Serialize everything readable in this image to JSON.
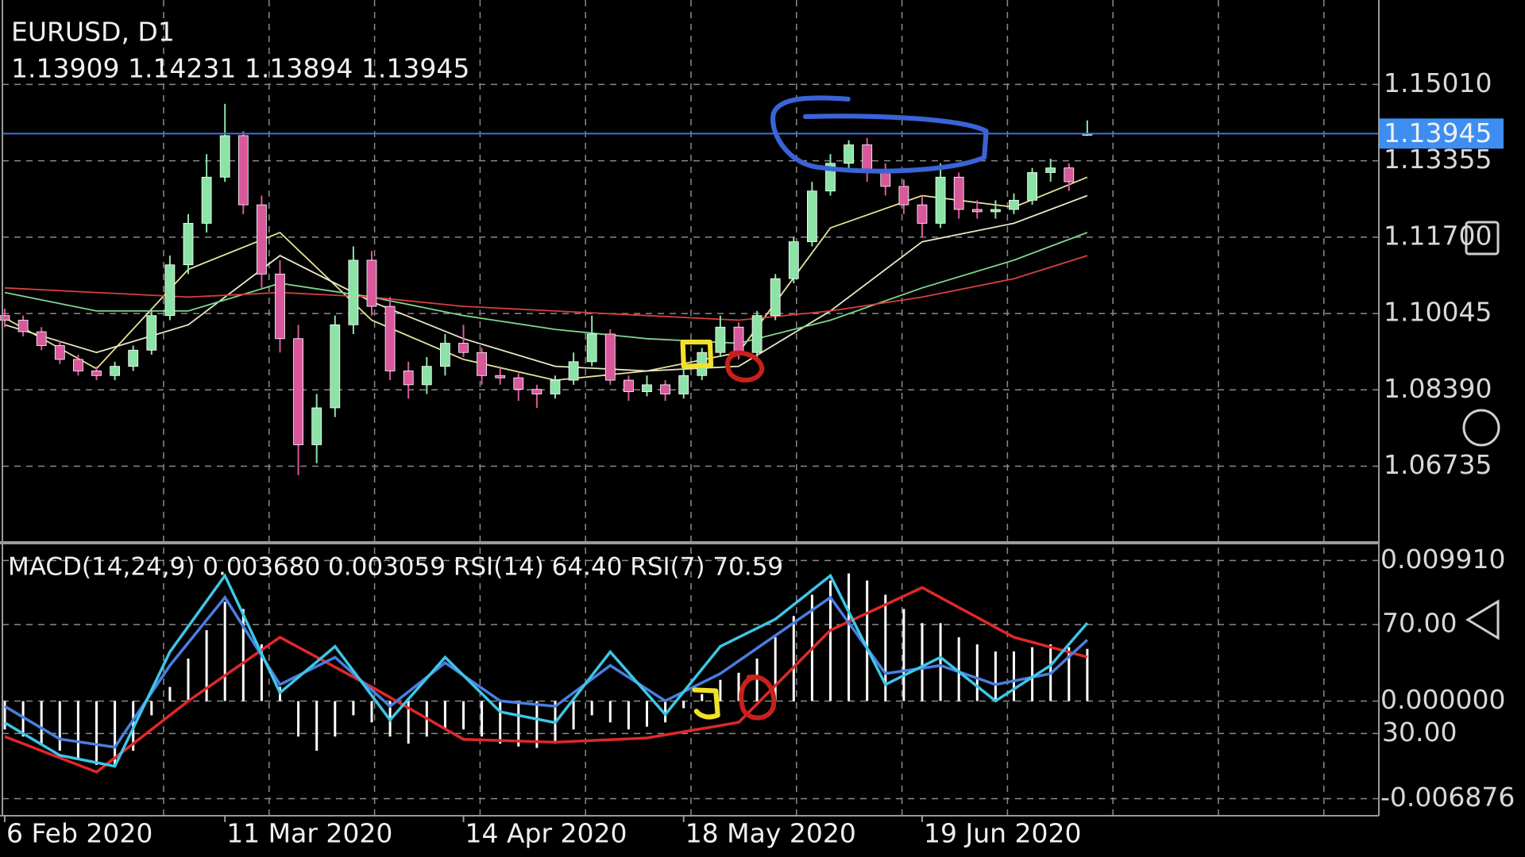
{
  "chart_data": {
    "type": "candlestick",
    "title": "EURUSD, D1",
    "subtitle": "1.13909 1.14231 1.13894 1.13945",
    "candles": [
      [
        1.1,
        1.1015,
        1.0975,
        1.099
      ],
      [
        1.099,
        1.1,
        1.0955,
        1.0965
      ],
      [
        1.0965,
        1.0975,
        1.0925,
        1.0935
      ],
      [
        1.0935,
        1.0945,
        1.0895,
        1.0905
      ],
      [
        1.0905,
        1.0915,
        1.087,
        1.088
      ],
      [
        1.088,
        1.089,
        1.086,
        1.087
      ],
      [
        1.087,
        1.09,
        1.086,
        1.089
      ],
      [
        1.089,
        1.0935,
        1.088,
        1.0925
      ],
      [
        1.0925,
        1.101,
        1.0915,
        1.1
      ],
      [
        1.1,
        1.113,
        1.099,
        1.111
      ],
      [
        1.111,
        1.122,
        1.109,
        1.12
      ],
      [
        1.12,
        1.135,
        1.118,
        1.13
      ],
      [
        1.13,
        1.1459,
        1.129,
        1.139
      ],
      [
        1.139,
        1.14,
        1.122,
        1.124
      ],
      [
        1.124,
        1.126,
        1.106,
        1.109
      ],
      [
        1.109,
        1.112,
        1.092,
        1.095
      ],
      [
        1.095,
        1.098,
        1.0654,
        1.072
      ],
      [
        1.072,
        1.083,
        1.068,
        1.08
      ],
      [
        1.08,
        1.1,
        1.078,
        1.098
      ],
      [
        1.098,
        1.115,
        1.096,
        1.112
      ],
      [
        1.112,
        1.114,
        1.1,
        1.102
      ],
      [
        1.102,
        1.104,
        1.086,
        1.088
      ],
      [
        1.088,
        1.09,
        1.082,
        1.085
      ],
      [
        1.085,
        1.091,
        1.083,
        1.089
      ],
      [
        1.089,
        1.096,
        1.087,
        1.094
      ],
      [
        1.094,
        1.098,
        1.091,
        1.092
      ],
      [
        1.092,
        1.093,
        1.085,
        1.087
      ],
      [
        1.087,
        1.089,
        1.085,
        1.0865
      ],
      [
        1.0865,
        1.0875,
        1.0815,
        1.084
      ],
      [
        1.084,
        1.085,
        1.08,
        1.083
      ],
      [
        1.083,
        1.087,
        1.082,
        1.086
      ],
      [
        1.086,
        1.092,
        1.085,
        1.09
      ],
      [
        1.09,
        1.1,
        1.089,
        1.096
      ],
      [
        1.096,
        1.097,
        1.085,
        1.086
      ],
      [
        1.086,
        1.087,
        1.0815,
        1.0835
      ],
      [
        1.0835,
        1.087,
        1.0825,
        1.085
      ],
      [
        1.085,
        1.086,
        1.0815,
        1.083
      ],
      [
        1.083,
        1.089,
        1.082,
        1.087
      ],
      [
        1.087,
        1.093,
        1.086,
        1.092
      ],
      [
        1.092,
        1.1,
        1.091,
        1.0975
      ],
      [
        1.0975,
        1.0985,
        1.0905,
        1.092
      ],
      [
        1.092,
        1.101,
        1.091,
        1.1
      ],
      [
        1.1,
        1.109,
        1.099,
        1.108
      ],
      [
        1.108,
        1.117,
        1.107,
        1.116
      ],
      [
        1.116,
        1.129,
        1.115,
        1.127
      ],
      [
        1.127,
        1.135,
        1.126,
        1.133
      ],
      [
        1.133,
        1.138,
        1.131,
        1.137
      ],
      [
        1.137,
        1.1385,
        1.129,
        1.131
      ],
      [
        1.131,
        1.133,
        1.126,
        1.128
      ],
      [
        1.128,
        1.1295,
        1.122,
        1.124
      ],
      [
        1.124,
        1.126,
        1.117,
        1.12
      ],
      [
        1.12,
        1.133,
        1.119,
        1.13
      ],
      [
        1.13,
        1.131,
        1.121,
        1.123
      ],
      [
        1.123,
        1.125,
        1.121,
        1.1225
      ],
      [
        1.1225,
        1.125,
        1.121,
        1.123
      ],
      [
        1.123,
        1.1265,
        1.122,
        1.125
      ],
      [
        1.125,
        1.132,
        1.124,
        1.131
      ],
      [
        1.131,
        1.134,
        1.129,
        1.132
      ],
      [
        1.132,
        1.133,
        1.127,
        1.129
      ],
      [
        1.13909,
        1.14231,
        1.13894,
        1.13945
      ]
    ],
    "up_color": "#8be3a6",
    "down_color": "#d9589c",
    "ylim": [
      1.0511,
      1.1684
    ],
    "yticks": [
      {
        "value": 1.1501,
        "label": "1.15010"
      },
      1.13355,
      {
        "value": 1.117,
        "label": "1.11700"
      },
      1.10045,
      {
        "value": 1.0839,
        "label": "1.08390"
      },
      1.06735
    ],
    "price_line": 1.13945,
    "xticks": [
      {
        "value": 0,
        "label": "6 Feb 2020"
      },
      {
        "value": 12,
        "label": "11 Mar 2020"
      },
      {
        "value": 25,
        "label": "14 Apr 2020"
      },
      {
        "value": 37,
        "label": "18 May 2020"
      },
      {
        "value": 50,
        "label": "19 Jun 2020"
      }
    ],
    "ma_x": [
      0,
      5,
      10,
      15,
      20,
      25,
      30,
      35,
      40,
      45,
      50,
      55,
      59
    ],
    "moving_averages": [
      {
        "color": "#e6e39a",
        "values": [
          1.0995,
          1.0885,
          1.11,
          1.118,
          1.099,
          1.0905,
          1.086,
          1.088,
          1.092,
          1.119,
          1.126,
          1.1235,
          1.13
        ]
      },
      {
        "color": "#e8e8c8",
        "values": [
          1.098,
          1.092,
          1.098,
          1.113,
          1.103,
          1.095,
          1.089,
          1.088,
          1.089,
          1.101,
          1.116,
          1.12,
          1.126
        ]
      },
      {
        "color": "#7fd58e",
        "values": [
          1.105,
          1.101,
          1.101,
          1.107,
          1.104,
          1.1,
          1.097,
          1.095,
          1.094,
          1.099,
          1.106,
          1.112,
          1.118
        ]
      },
      {
        "color": "#d8403c",
        "values": [
          1.106,
          1.105,
          1.104,
          1.105,
          1.104,
          1.102,
          1.101,
          1.1,
          1.099,
          1.101,
          1.104,
          1.108,
          1.113
        ]
      }
    ],
    "indicator_label": "MACD(14,24,9) 0.003680 0.003059 RSI(14) 64.40 RSI(7) 70.59",
    "macd_histogram": [
      -0.002,
      -0.0025,
      -0.003,
      -0.0035,
      -0.004,
      -0.0045,
      -0.0045,
      -0.0035,
      -0.001,
      0.001,
      0.003,
      0.005,
      0.007,
      0.0065,
      0.004,
      0.001,
      -0.0025,
      -0.0035,
      -0.0025,
      -0.001,
      -0.0015,
      -0.0025,
      -0.003,
      -0.0025,
      -0.002,
      -0.002,
      -0.0025,
      -0.003,
      -0.0032,
      -0.0033,
      -0.003,
      -0.002,
      -0.001,
      -0.0015,
      -0.002,
      -0.0018,
      -0.0015,
      -0.0005,
      0.0005,
      0.0015,
      0.002,
      0.003,
      0.0045,
      0.006,
      0.0075,
      0.0085,
      0.009,
      0.0085,
      0.0075,
      0.0065,
      0.0055,
      0.0055,
      0.0045,
      0.004,
      0.0035,
      0.0035,
      0.0038,
      0.004,
      0.0038,
      0.00368
    ],
    "macd_color": "#ffffff",
    "signal": {
      "color": "#e02828",
      "values": [
        -0.0025,
        -0.005,
        0.0,
        0.0045,
        0.001,
        -0.0027,
        -0.0029,
        -0.0026,
        -0.0015,
        0.005,
        0.008,
        0.0045,
        0.0031
      ]
    },
    "rsi_x": [
      0,
      3,
      6,
      9,
      12,
      15,
      18,
      21,
      24,
      27,
      30,
      33,
      36,
      39,
      42,
      45,
      48,
      51,
      54,
      57,
      59
    ],
    "rsi": [
      {
        "color": "#4a7fe0",
        "axis": "y2",
        "values": [
          40,
          28,
          25,
          55,
          80,
          48,
          58,
          40,
          56,
          42,
          40,
          55,
          42,
          52,
          66,
          80,
          52,
          55,
          48,
          52,
          64.4
        ]
      },
      {
        "color": "#3ec6e6",
        "axis": "y2",
        "values": [
          34,
          22,
          18,
          60,
          88,
          45,
          62,
          35,
          58,
          38,
          34,
          60,
          37,
          62,
          72,
          88,
          48,
          58,
          42,
          55,
          70.59
        ]
      }
    ],
    "y1lim_lower": [
      -0.00797,
      0.01094
    ],
    "yticks_lower": [
      {
        "value": 0.00991,
        "label": "0.009910"
      },
      {
        "value": 0,
        "label": "0.000000"
      },
      {
        "value": -0.006876,
        "label": "-0.006876"
      }
    ],
    "y2lim": [
      0.4,
      98.9
    ],
    "y2ticks": [
      {
        "value": 70,
        "label": "70.00"
      },
      {
        "value": 30,
        "label": "30.00"
      }
    ]
  }
}
